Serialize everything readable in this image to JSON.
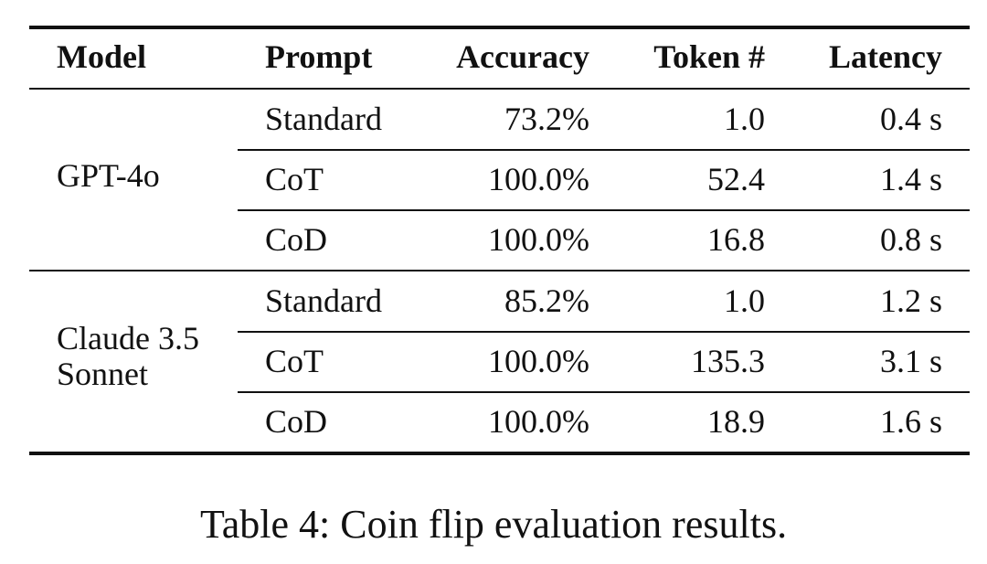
{
  "table": {
    "headers": [
      "Model",
      "Prompt",
      "Accuracy",
      "Token #",
      "Latency"
    ],
    "groups": [
      {
        "model": "GPT-4o",
        "rows": [
          {
            "prompt": "Standard",
            "accuracy": "73.2%",
            "tokens": "1.0",
            "latency": "0.4 s"
          },
          {
            "prompt": "CoT",
            "accuracy": "100.0%",
            "tokens": "52.4",
            "latency": "1.4 s"
          },
          {
            "prompt": "CoD",
            "accuracy": "100.0%",
            "tokens": "16.8",
            "latency": "0.8 s"
          }
        ]
      },
      {
        "model": "Claude 3.5 Sonnet",
        "model_lines": [
          "Claude 3.5",
          "Sonnet"
        ],
        "rows": [
          {
            "prompt": "Standard",
            "accuracy": "85.2%",
            "tokens": "1.0",
            "latency": "1.2 s"
          },
          {
            "prompt": "CoT",
            "accuracy": "100.0%",
            "tokens": "135.3",
            "latency": "3.1 s"
          },
          {
            "prompt": "CoD",
            "accuracy": "100.0%",
            "tokens": "18.9",
            "latency": "1.6 s"
          }
        ]
      }
    ]
  },
  "caption": "Table 4: Coin flip evaluation results."
}
